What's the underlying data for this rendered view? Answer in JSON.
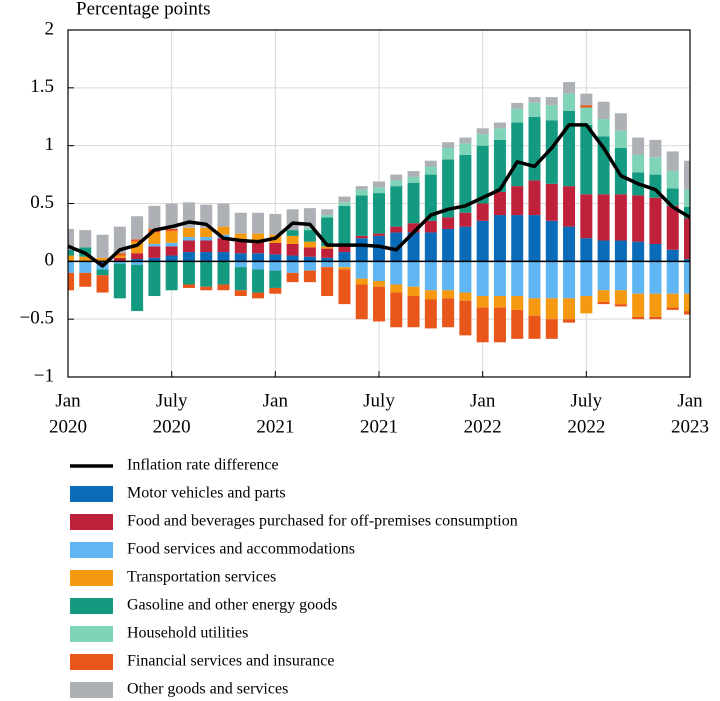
{
  "chart_data": {
    "type": "bar",
    "stacked": true,
    "y_axis_label": "Percentage points",
    "categories": [
      {
        "month": "Jan",
        "year": "2020"
      },
      null,
      null,
      null,
      null,
      null,
      {
        "month": "July",
        "year": "2020"
      },
      null,
      null,
      null,
      null,
      null,
      {
        "month": "Jan",
        "year": "2021"
      },
      null,
      null,
      null,
      null,
      null,
      {
        "month": "July",
        "year": "2021"
      },
      null,
      null,
      null,
      null,
      null,
      {
        "month": "Jan",
        "year": "2022"
      },
      null,
      null,
      null,
      null,
      null,
      {
        "month": "July",
        "year": "2022"
      },
      null,
      null,
      null,
      null,
      null,
      {
        "month": "Jan",
        "year": "2023"
      }
    ],
    "ylim": [
      -1,
      2
    ],
    "yticks": [
      {
        "value": -1,
        "label": "−1"
      },
      {
        "value": -0.5,
        "label": "−0.5"
      },
      0,
      0.5,
      1,
      1.5,
      2
    ],
    "grid": true,
    "series": [
      {
        "name": "Inflation rate difference",
        "type": "line",
        "color": "#000000",
        "values": [
          0.13,
          0.07,
          -0.04,
          0.1,
          0.14,
          0.27,
          0.3,
          0.34,
          0.32,
          0.2,
          0.18,
          0.17,
          0.2,
          0.33,
          0.32,
          0.14,
          0.14,
          0.14,
          0.13,
          0.1,
          0.25,
          0.4,
          0.45,
          0.48,
          0.55,
          0.62,
          0.86,
          0.82,
          0.98,
          1.18,
          1.18,
          0.98,
          0.74,
          0.67,
          0.62,
          0.47,
          0.38
        ]
      },
      {
        "name": "Motor vehicles and parts",
        "color": "#0a6bb8",
        "values": [
          0,
          0,
          -0.02,
          0,
          0.02,
          0.03,
          0.05,
          0.08,
          0.08,
          0.08,
          0.07,
          0.07,
          0.06,
          0.05,
          0.04,
          0.03,
          0.08,
          0.2,
          0.22,
          0.25,
          0.25,
          0.25,
          0.28,
          0.3,
          0.35,
          0.4,
          0.4,
          0.4,
          0.35,
          0.3,
          0.2,
          0.18,
          0.18,
          0.17,
          0.15,
          0.1,
          0.02
        ]
      },
      {
        "name": "Food and beverages purchased for off-premises consumption",
        "color": "#c0213a",
        "values": [
          0,
          0,
          0,
          0.03,
          0.05,
          0.1,
          0.08,
          0.1,
          0.1,
          0.12,
          0.1,
          0.1,
          0.1,
          0.1,
          0.08,
          0.08,
          0.05,
          0.02,
          0.02,
          0.05,
          0.08,
          0.1,
          0.1,
          0.12,
          0.15,
          0.2,
          0.25,
          0.3,
          0.32,
          0.35,
          0.38,
          0.4,
          0.4,
          0.4,
          0.4,
          0.38,
          0.35
        ]
      },
      {
        "name": "Food services and accommodations",
        "color": "#5fb6f2",
        "values": [
          -0.1,
          -0.1,
          -0.05,
          -0.02,
          -0.03,
          0.02,
          0.03,
          0.03,
          0.03,
          0.03,
          -0.05,
          -0.07,
          -0.08,
          -0.1,
          -0.08,
          -0.05,
          -0.05,
          -0.15,
          -0.17,
          -0.2,
          -0.22,
          -0.25,
          -0.25,
          -0.27,
          -0.3,
          -0.3,
          -0.3,
          -0.32,
          -0.32,
          -0.32,
          -0.3,
          -0.25,
          -0.25,
          -0.28,
          -0.28,
          -0.28,
          -0.28
        ]
      },
      {
        "name": "Transportation services",
        "color": "#f59a10",
        "values": [
          0.05,
          0.04,
          0.03,
          0.02,
          0.1,
          0.1,
          0.1,
          0.08,
          0.08,
          0.07,
          0.07,
          0.07,
          0.07,
          0.07,
          0.05,
          0.02,
          -0.02,
          -0.05,
          -0.05,
          -0.07,
          -0.08,
          -0.08,
          -0.07,
          -0.07,
          -0.1,
          -0.1,
          -0.12,
          -0.15,
          -0.18,
          -0.18,
          -0.15,
          -0.1,
          -0.12,
          -0.2,
          -0.2,
          -0.12,
          -0.15
        ]
      },
      {
        "name": "Gasoline and other energy goods",
        "color": "#159a82",
        "values": [
          0.05,
          0.08,
          -0.05,
          -0.3,
          -0.4,
          -0.3,
          -0.25,
          -0.2,
          -0.22,
          -0.2,
          -0.2,
          -0.2,
          -0.15,
          0.05,
          0.1,
          0.25,
          0.35,
          0.35,
          0.35,
          0.35,
          0.35,
          0.4,
          0.5,
          0.5,
          0.5,
          0.45,
          0.55,
          0.55,
          0.55,
          0.65,
          0.6,
          0.5,
          0.4,
          0.2,
          0.2,
          0.15,
          0.1
        ]
      },
      {
        "name": "Household utilities",
        "color": "#7fd3b8",
        "values": [
          0,
          0,
          0,
          0,
          0,
          0,
          0,
          0,
          0,
          0,
          0,
          0,
          0,
          0,
          0.02,
          0.02,
          0.03,
          0.05,
          0.05,
          0.05,
          0.05,
          0.07,
          0.1,
          0.1,
          0.1,
          0.1,
          0.12,
          0.12,
          0.13,
          0.15,
          0.15,
          0.15,
          0.15,
          0.15,
          0.15,
          0.15,
          0.15
        ]
      },
      {
        "name": "Financial services and insurance",
        "color": "#e8561a",
        "values": [
          -0.15,
          -0.12,
          -0.15,
          0.02,
          0.02,
          0.03,
          0.02,
          -0.03,
          -0.03,
          -0.05,
          -0.05,
          -0.05,
          -0.05,
          -0.08,
          -0.1,
          -0.25,
          -0.3,
          -0.3,
          -0.3,
          -0.3,
          -0.27,
          -0.25,
          -0.25,
          -0.3,
          -0.3,
          -0.3,
          -0.25,
          -0.2,
          -0.17,
          -0.03,
          0.02,
          -0.02,
          -0.02,
          -0.02,
          -0.02,
          -0.02,
          -0.03
        ]
      },
      {
        "name": "Other goods and services",
        "color": "#adb1b6",
        "values": [
          0.18,
          0.15,
          0.2,
          0.23,
          0.2,
          0.2,
          0.22,
          0.22,
          0.2,
          0.2,
          0.18,
          0.18,
          0.18,
          0.18,
          0.17,
          0.05,
          0.05,
          0.03,
          0.05,
          0.05,
          0.05,
          0.05,
          0.05,
          0.05,
          0.05,
          0.05,
          0.05,
          0.05,
          0.07,
          0.1,
          0.1,
          0.15,
          0.15,
          0.15,
          0.15,
          0.17,
          0.25
        ]
      }
    ]
  }
}
